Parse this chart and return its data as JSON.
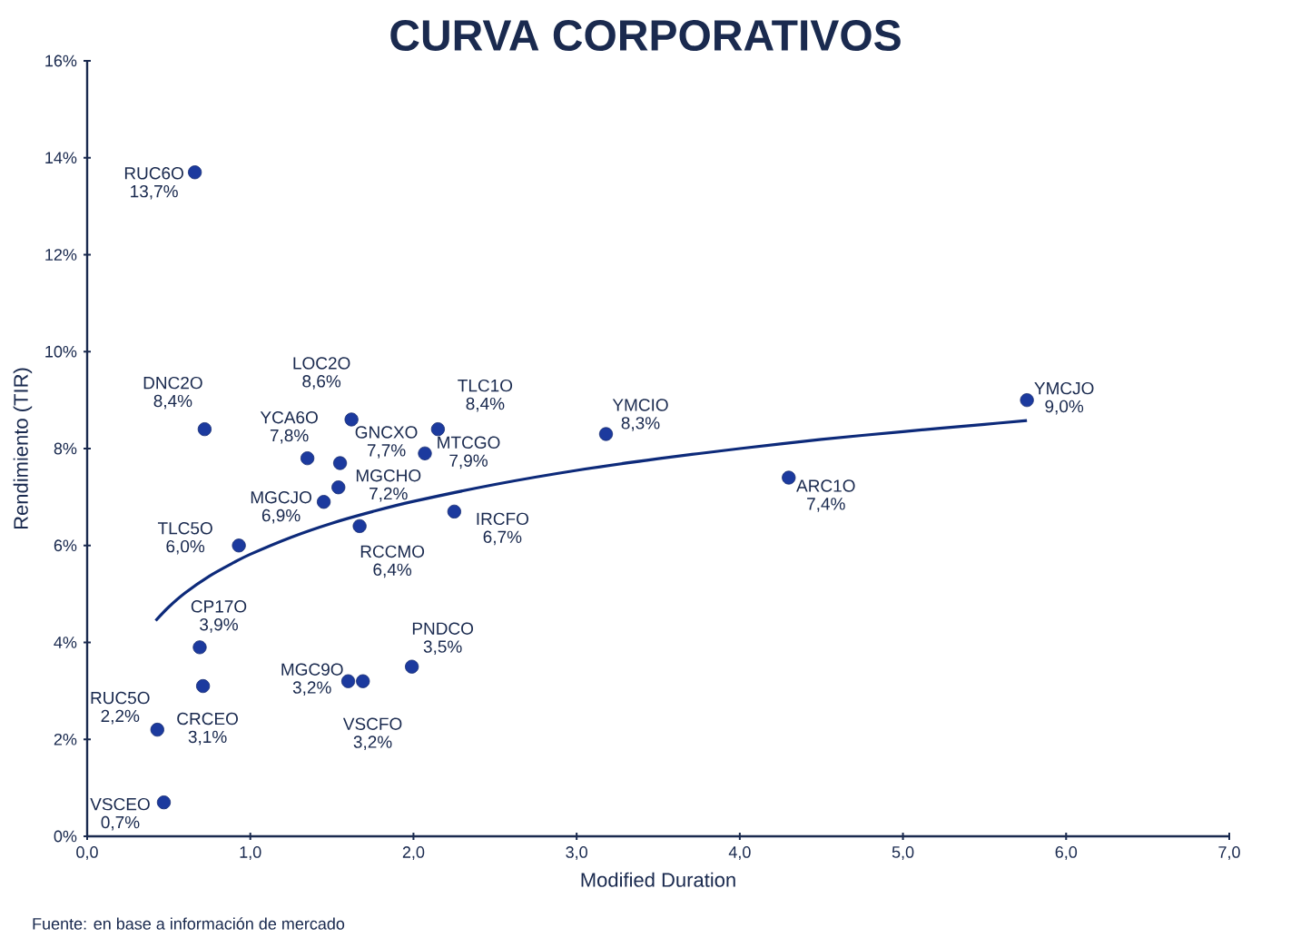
{
  "chart_data": {
    "type": "scatter",
    "title": "CURVA CORPORATIVOS",
    "xlabel": "Modified Duration",
    "ylabel": "Rendimiento (TIR)",
    "xlim": [
      0,
      7
    ],
    "ylim": [
      0,
      16
    ],
    "xticks": [
      {
        "value": 0,
        "label": "0,0"
      },
      {
        "value": 1,
        "label": "1,0"
      },
      {
        "value": 2,
        "label": "2,0"
      },
      {
        "value": 3,
        "label": "3,0"
      },
      {
        "value": 4,
        "label": "4,0"
      },
      {
        "value": 5,
        "label": "5,0"
      },
      {
        "value": 6,
        "label": "6,0"
      },
      {
        "value": 7,
        "label": "7,0"
      }
    ],
    "yticks": [
      {
        "value": 0,
        "label": "0%"
      },
      {
        "value": 2,
        "label": "2%"
      },
      {
        "value": 4,
        "label": "4%"
      },
      {
        "value": 6,
        "label": "6%"
      },
      {
        "value": 8,
        "label": "8%"
      },
      {
        "value": 10,
        "label": "10%"
      },
      {
        "value": 12,
        "label": "12%"
      },
      {
        "value": 14,
        "label": "14%"
      },
      {
        "value": 16,
        "label": "16%"
      }
    ],
    "series": [
      {
        "color": "#1c3a9e",
        "marker": "circle",
        "x": [
          0.66,
          0.72,
          1.62,
          2.15,
          3.18,
          5.76,
          1.35,
          1.55,
          2.07,
          1.54,
          1.45,
          2.25,
          4.3,
          0.93,
          1.67,
          0.69,
          1.99,
          1.69,
          1.6,
          0.71,
          0.43,
          0.47
        ],
        "values": [
          13.7,
          8.4,
          8.6,
          8.4,
          8.3,
          9.0,
          7.8,
          7.7,
          7.9,
          7.2,
          6.9,
          6.7,
          7.4,
          6.0,
          6.4,
          3.9,
          3.5,
          3.2,
          3.2,
          3.1,
          2.2,
          0.7
        ],
        "value_labels": [
          "13,7%",
          "8,4%",
          "8,6%",
          "8,4%",
          "8,3%",
          "9,0%",
          "7,8%",
          "7,7%",
          "7,9%",
          "7,2%",
          "6,9%",
          "6,7%",
          "7,4%",
          "6,0%",
          "6,4%",
          "3,9%",
          "3,5%",
          "3,2%",
          "3,2%",
          "3,1%",
          "2,2%",
          "0,7%"
        ]
      },
      {
        "type": "line",
        "color": "#0d2a7a",
        "line_style": "solid",
        "x": [
          0.42,
          0.5,
          0.6,
          0.75,
          0.9,
          1.0,
          1.25,
          1.5,
          1.75,
          2.0,
          2.5,
          3.0,
          3.5,
          4.0,
          4.5,
          5.0,
          5.5,
          5.76
        ],
        "values": [
          4.45,
          4.73,
          5.02,
          5.37,
          5.65,
          5.82,
          6.17,
          6.46,
          6.7,
          6.91,
          7.26,
          7.55,
          7.79,
          8.0,
          8.19,
          8.35,
          8.5,
          8.58
        ]
      }
    ],
    "annotations": [
      {
        "text": "RUC6O",
        "x": 0.66,
        "y": 13.7
      },
      {
        "text": "DNC2O",
        "x": 0.72,
        "y": 8.4
      },
      {
        "text": "LOC2O",
        "x": 1.62,
        "y": 8.6
      },
      {
        "text": "TLC1O",
        "x": 2.15,
        "y": 8.4
      },
      {
        "text": "YMCIO",
        "x": 3.18,
        "y": 8.3
      },
      {
        "text": "YMCJO",
        "x": 5.76,
        "y": 9.0
      },
      {
        "text": "YCA6O",
        "x": 1.35,
        "y": 7.8
      },
      {
        "text": "GNCXO",
        "x": 1.55,
        "y": 7.7
      },
      {
        "text": "MTCGO",
        "x": 2.07,
        "y": 7.9
      },
      {
        "text": "MGCHO",
        "x": 1.54,
        "y": 7.2
      },
      {
        "text": "MGCJO",
        "x": 1.45,
        "y": 6.9
      },
      {
        "text": "IRCFO",
        "x": 2.25,
        "y": 6.7
      },
      {
        "text": "ARC1O",
        "x": 4.3,
        "y": 7.4
      },
      {
        "text": "TLC5O",
        "x": 0.93,
        "y": 6.0
      },
      {
        "text": "RCCMO",
        "x": 1.67,
        "y": 6.4
      },
      {
        "text": "CP17O",
        "x": 0.69,
        "y": 3.9
      },
      {
        "text": "PNDCO",
        "x": 1.99,
        "y": 3.5
      },
      {
        "text": "MGC9O",
        "x": 1.69,
        "y": 3.2
      },
      {
        "text": "VSCFO",
        "x": 1.6,
        "y": 3.2
      },
      {
        "text": "CRCEO",
        "x": 0.71,
        "y": 3.1
      },
      {
        "text": "RUC5O",
        "x": 0.43,
        "y": 2.2
      },
      {
        "text": "VSCEO",
        "x": 0.47,
        "y": 0.7
      },
      "Fuente: en base a información de mercado"
    ]
  }
}
